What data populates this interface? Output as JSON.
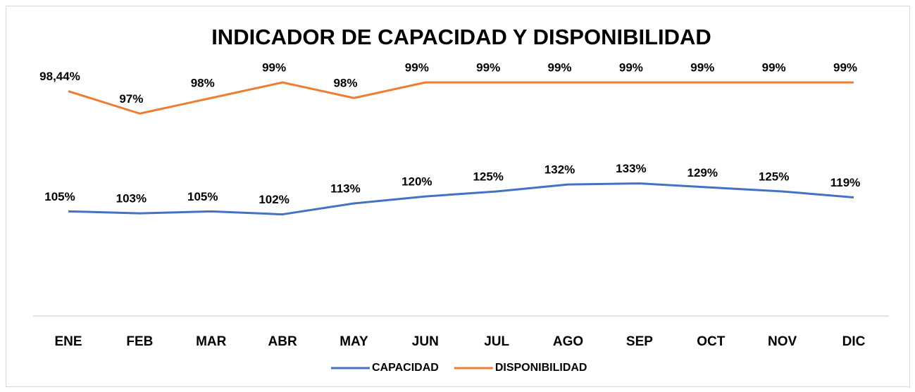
{
  "chart_data": {
    "type": "line",
    "title": "INDICADOR DE CAPACIDAD Y DISPONIBILIDAD",
    "categories": [
      "ENE",
      "FEB",
      "MAR",
      "ABR",
      "MAY",
      "JUN",
      "JUL",
      "AGO",
      "SEP",
      "OCT",
      "NOV",
      "DIC"
    ],
    "series": [
      {
        "name": "CAPACIDAD",
        "color": "#4472c4",
        "values": [
          105,
          103,
          105,
          102,
          113,
          120,
          125,
          132,
          133,
          129,
          125,
          119
        ],
        "value_labels": [
          "105%",
          "103%",
          "105%",
          "102%",
          "113%",
          "120%",
          "125%",
          "132%",
          "133%",
          "129%",
          "125%",
          "119%"
        ]
      },
      {
        "name": "DISPONIBILIDAD",
        "color": "#ed7d31",
        "axis": "y2",
        "values": [
          98.44,
          97,
          98,
          99,
          98,
          99,
          99,
          99,
          99,
          99,
          99,
          99
        ],
        "value_labels": [
          "98,44%",
          "97%",
          "98%",
          "99%",
          "98%",
          "99%",
          "99%",
          "99%",
          "99%",
          "99%",
          "99%",
          "99%"
        ]
      }
    ],
    "ylim": [
      0,
      250
    ],
    "y2lim": [
      84,
      100
    ],
    "legend": "bottom"
  }
}
